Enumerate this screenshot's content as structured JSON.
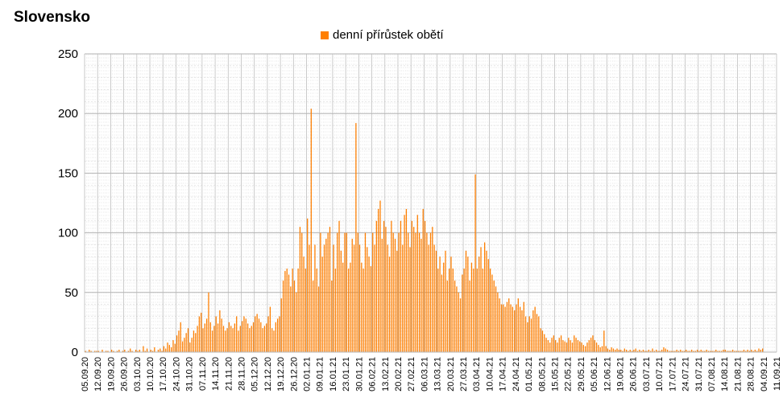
{
  "chart_data": {
    "type": "bar",
    "title": "Slovensko",
    "series": [
      {
        "name": "denní přírůstek obětí",
        "color": "#ff7f00",
        "values": []
      }
    ],
    "ylim": [
      0,
      250
    ],
    "yticks": [
      0,
      50,
      100,
      150,
      200,
      250
    ],
    "grid": true,
    "legend_position": "top-center",
    "x_start": "05.09.20",
    "x_end": "11.09.21",
    "xtick_labels": [
      "05.09.20",
      "12.09.20",
      "19.09.20",
      "26.09.20",
      "03.10.20",
      "10.10.20",
      "17.10.20",
      "24.10.20",
      "31.10.20",
      "07.11.20",
      "14.11.20",
      "21.11.20",
      "28.11.20",
      "05.12.20",
      "12.12.20",
      "19.12.20",
      "26.12.20",
      "02.01.21",
      "09.01.21",
      "16.01.21",
      "23.01.21",
      "30.01.21",
      "06.02.21",
      "13.02.21",
      "20.02.21",
      "27.02.21",
      "06.03.21",
      "13.03.21",
      "20.03.21",
      "27.03.21",
      "03.04.21",
      "10.04.21",
      "17.04.21",
      "24.04.21",
      "01.05.21",
      "08.05.21",
      "15.05.21",
      "22.05.21",
      "29.05.21",
      "05.06.21",
      "12.06.21",
      "19.06.21",
      "26.06.21",
      "03.07.21",
      "10.07.21",
      "17.07.21",
      "24.07.21",
      "31.07.21",
      "07.08.21",
      "14.08.21",
      "21.08.21",
      "28.08.21",
      "04.09.21",
      "11.09.21"
    ],
    "weekly_values": [
      [
        1,
        0,
        2,
        1,
        0,
        1,
        1
      ],
      [
        1,
        0,
        2,
        0,
        1,
        1,
        0
      ],
      [
        2,
        1,
        0,
        1,
        2,
        0,
        1
      ],
      [
        2,
        0,
        1,
        3,
        1,
        0,
        2
      ],
      [
        1,
        2,
        0,
        5,
        1,
        3,
        0
      ],
      [
        2,
        1,
        4,
        0,
        2,
        3,
        1
      ],
      [
        5,
        3,
        8,
        6,
        4,
        10,
        7
      ],
      [
        14,
        18,
        25,
        9,
        12,
        16,
        20
      ],
      [
        8,
        12,
        18,
        16,
        22,
        30,
        33
      ],
      [
        20,
        24,
        28,
        50,
        25,
        18,
        22
      ],
      [
        30,
        24,
        35,
        28,
        22,
        18,
        20
      ],
      [
        25,
        22,
        20,
        24,
        30,
        18,
        22
      ],
      [
        26,
        30,
        28,
        24,
        20,
        22,
        25
      ],
      [
        30,
        32,
        28,
        25,
        20,
        22,
        24
      ],
      [
        30,
        38,
        20,
        18,
        25,
        28,
        30
      ],
      [
        45,
        60,
        68,
        70,
        65,
        55,
        70
      ],
      [
        60,
        50,
        70,
        105,
        100,
        80,
        70
      ],
      [
        112,
        90,
        204,
        60,
        90,
        70,
        55
      ],
      [
        100,
        80,
        90,
        95,
        100,
        105,
        60
      ],
      [
        90,
        70,
        100,
        110,
        85,
        75,
        100
      ],
      [
        100,
        70,
        75,
        95,
        90,
        192,
        100
      ],
      [
        90,
        75,
        70,
        100,
        88,
        80,
        72
      ],
      [
        100,
        90,
        110,
        120,
        127,
        95,
        110
      ],
      [
        105,
        90,
        80,
        110,
        100,
        95,
        85
      ],
      [
        100,
        110,
        90,
        115,
        120,
        100,
        88
      ],
      [
        110,
        105,
        100,
        115,
        100,
        95,
        120
      ],
      [
        110,
        100,
        90,
        100,
        105,
        90,
        85
      ],
      [
        70,
        80,
        65,
        75,
        85,
        60,
        70
      ],
      [
        80,
        70,
        60,
        55,
        50,
        45,
        65
      ],
      [
        70,
        85,
        80,
        60,
        75,
        70,
        149
      ],
      [
        70,
        80,
        88,
        70,
        92,
        85,
        78
      ],
      [
        70,
        65,
        60,
        55,
        50,
        45,
        40
      ],
      [
        40,
        38,
        42,
        45,
        40,
        38,
        35
      ],
      [
        40,
        45,
        38,
        35,
        42,
        30,
        25
      ],
      [
        30,
        28,
        35,
        38,
        32,
        30,
        20
      ],
      [
        18,
        15,
        12,
        10,
        8,
        12,
        14
      ],
      [
        10,
        8,
        12,
        14,
        10,
        9,
        8
      ],
      [
        12,
        10,
        8,
        14,
        12,
        10,
        9
      ],
      [
        8,
        6,
        5,
        8,
        10,
        12,
        14
      ],
      [
        10,
        8,
        6,
        4,
        5,
        18,
        5
      ],
      [
        3,
        2,
        4,
        3,
        2,
        3,
        2
      ],
      [
        2,
        1,
        3,
        2,
        1,
        2,
        1
      ],
      [
        2,
        3,
        1,
        2,
        1,
        2,
        1
      ],
      [
        1,
        2,
        1,
        3,
        1,
        2,
        1
      ],
      [
        1,
        2,
        4,
        3,
        2,
        1,
        1
      ],
      [
        1,
        1,
        2,
        1,
        2,
        1,
        1
      ],
      [
        2,
        1,
        1,
        2,
        1,
        1,
        2
      ],
      [
        1,
        2,
        1,
        1,
        2,
        1,
        1
      ],
      [
        1,
        1,
        2,
        1,
        1,
        1,
        2
      ],
      [
        2,
        1,
        1,
        1,
        2,
        1,
        1
      ],
      [
        1,
        1,
        1,
        2,
        1,
        2,
        1
      ],
      [
        2,
        1,
        2,
        1,
        3,
        2,
        3
      ]
    ]
  }
}
